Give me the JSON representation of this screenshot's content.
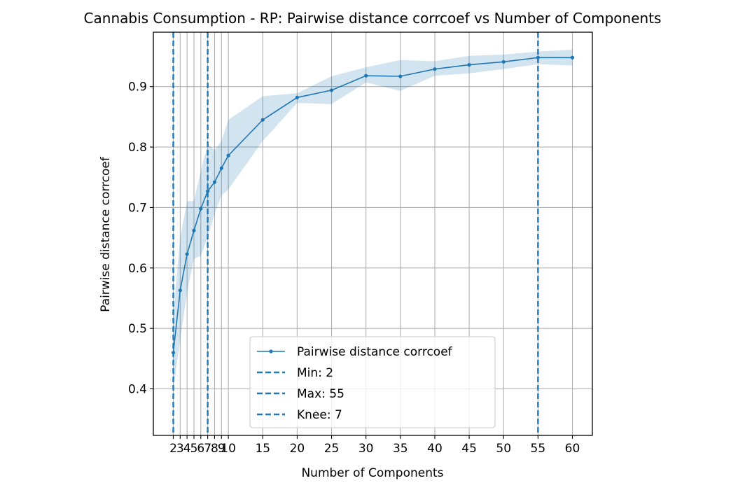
{
  "chart_data": {
    "type": "line",
    "title": "Cannabis Consumption - RP: Pairwise distance corrcoef vs Number of Components",
    "xlabel": "Number of Components",
    "ylabel": "Pairwise distance corrcoef",
    "xlim": [
      -0.9,
      62.9
    ],
    "ylim": [
      0.323,
      0.99
    ],
    "x_ticks": [
      2,
      3,
      4,
      5,
      6,
      7,
      8,
      9,
      10,
      15,
      20,
      25,
      30,
      35,
      40,
      45,
      50,
      55,
      60
    ],
    "x_tick_labels": [
      "2",
      "3",
      "4",
      "5",
      "6",
      "7",
      "8",
      "9",
      "10",
      "15",
      "20",
      "25",
      "30",
      "35",
      "40",
      "45",
      "50",
      "55",
      "60"
    ],
    "y_ticks": [
      0.4,
      0.5,
      0.6,
      0.7,
      0.8,
      0.9
    ],
    "y_tick_labels": [
      "0.4",
      "0.5",
      "0.6",
      "0.7",
      "0.8",
      "0.9"
    ],
    "grid": true,
    "color": "#1f77b4",
    "band_color": "#1f77b4",
    "series": [
      {
        "name": "Pairwise distance corrcoef",
        "x": [
          2,
          3,
          4,
          5,
          6,
          7,
          8,
          9,
          10,
          15,
          20,
          25,
          30,
          35,
          40,
          45,
          50,
          55,
          60
        ],
        "y": [
          0.46,
          0.563,
          0.623,
          0.662,
          0.698,
          0.727,
          0.742,
          0.765,
          0.786,
          0.845,
          0.882,
          0.894,
          0.918,
          0.917,
          0.929,
          0.936,
          0.941,
          0.948,
          0.948
        ],
        "lower": [
          0.4,
          0.48,
          0.56,
          0.615,
          0.62,
          0.65,
          0.69,
          0.72,
          0.73,
          0.81,
          0.873,
          0.871,
          0.907,
          0.893,
          0.918,
          0.922,
          0.929,
          0.937,
          0.935
        ],
        "upper": [
          0.525,
          0.65,
          0.71,
          0.711,
          0.76,
          0.805,
          0.795,
          0.81,
          0.845,
          0.884,
          0.889,
          0.917,
          0.932,
          0.944,
          0.942,
          0.951,
          0.953,
          0.958,
          0.961
        ]
      }
    ],
    "vlines": [
      {
        "name": "Min: 2",
        "x": 2
      },
      {
        "name": "Max: 55",
        "x": 55
      },
      {
        "name": "Knee: 7",
        "x": 7
      }
    ],
    "legend": {
      "placement": "lower-center",
      "entries": [
        "Pairwise distance corrcoef",
        "Min: 2",
        "Max: 55",
        "Knee: 7"
      ]
    }
  }
}
